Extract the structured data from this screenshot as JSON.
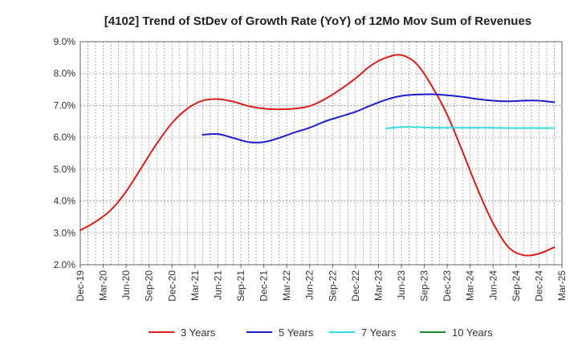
{
  "chart_data": {
    "type": "line",
    "title": "[4102]  Trend of StDev of Growth Rate (YoY) of 12Mo Mov Sum of Revenues",
    "xlabel": "",
    "ylabel": "",
    "ylim": [
      2.0,
      9.0
    ],
    "y_ticks": [
      "2.0%",
      "3.0%",
      "4.0%",
      "5.0%",
      "6.0%",
      "7.0%",
      "8.0%",
      "9.0%"
    ],
    "x_ticks": [
      "Dec-19",
      "Mar-20",
      "Jun-20",
      "Sep-20",
      "Dec-20",
      "Mar-21",
      "Jun-21",
      "Sep-21",
      "Dec-21",
      "Mar-22",
      "Jun-22",
      "Sep-22",
      "Dec-22",
      "Mar-23",
      "Jun-23",
      "Sep-23",
      "Dec-23",
      "Mar-24",
      "Jun-24",
      "Sep-24",
      "Dec-24",
      "Mar-25"
    ],
    "legend_position": "bottom",
    "series": [
      {
        "name": "3 Years",
        "color": "#dd1c1c",
        "points": [
          [
            0,
            3.08
          ],
          [
            1,
            3.35
          ],
          [
            2,
            3.72
          ],
          [
            3,
            4.3
          ],
          [
            4,
            5.05
          ],
          [
            5,
            5.8
          ],
          [
            6,
            6.45
          ],
          [
            7,
            6.9
          ],
          [
            8,
            7.15
          ],
          [
            9,
            7.2
          ],
          [
            10,
            7.12
          ],
          [
            11,
            6.98
          ],
          [
            12,
            6.9
          ],
          [
            13,
            6.88
          ],
          [
            14,
            6.9
          ],
          [
            15,
            6.98
          ],
          [
            16,
            7.2
          ],
          [
            17,
            7.5
          ],
          [
            18,
            7.85
          ],
          [
            19,
            8.25
          ],
          [
            20,
            8.5
          ],
          [
            21,
            8.58
          ],
          [
            22,
            8.3
          ],
          [
            23,
            7.6
          ],
          [
            24,
            6.7
          ],
          [
            25,
            5.55
          ],
          [
            26,
            4.35
          ],
          [
            27,
            3.3
          ],
          [
            28,
            2.55
          ],
          [
            29,
            2.3
          ],
          [
            30,
            2.35
          ],
          [
            31,
            2.55
          ]
        ]
      },
      {
        "name": "5 Years",
        "color": "#1c1ccc",
        "points": [
          [
            8,
            6.08
          ],
          [
            9,
            6.1
          ],
          [
            10,
            5.98
          ],
          [
            11,
            5.85
          ],
          [
            12,
            5.85
          ],
          [
            13,
            5.98
          ],
          [
            14,
            6.15
          ],
          [
            15,
            6.3
          ],
          [
            16,
            6.5
          ],
          [
            17,
            6.65
          ],
          [
            18,
            6.8
          ],
          [
            19,
            7.0
          ],
          [
            20,
            7.18
          ],
          [
            21,
            7.3
          ],
          [
            22,
            7.34
          ],
          [
            23,
            7.35
          ],
          [
            24,
            7.32
          ],
          [
            25,
            7.27
          ],
          [
            26,
            7.2
          ],
          [
            27,
            7.15
          ],
          [
            28,
            7.13
          ],
          [
            29,
            7.15
          ],
          [
            30,
            7.15
          ],
          [
            31,
            7.1
          ]
        ]
      },
      {
        "name": "7 Years",
        "color": "#33dddd",
        "points": [
          [
            20,
            6.28
          ],
          [
            21,
            6.32
          ],
          [
            22,
            6.32
          ],
          [
            23,
            6.3
          ],
          [
            24,
            6.3
          ],
          [
            25,
            6.3
          ],
          [
            26,
            6.3
          ],
          [
            27,
            6.3
          ],
          [
            28,
            6.29
          ],
          [
            29,
            6.29
          ],
          [
            30,
            6.29
          ],
          [
            31,
            6.29
          ]
        ]
      },
      {
        "name": "10 Years",
        "color": "#228822",
        "points": []
      }
    ]
  }
}
